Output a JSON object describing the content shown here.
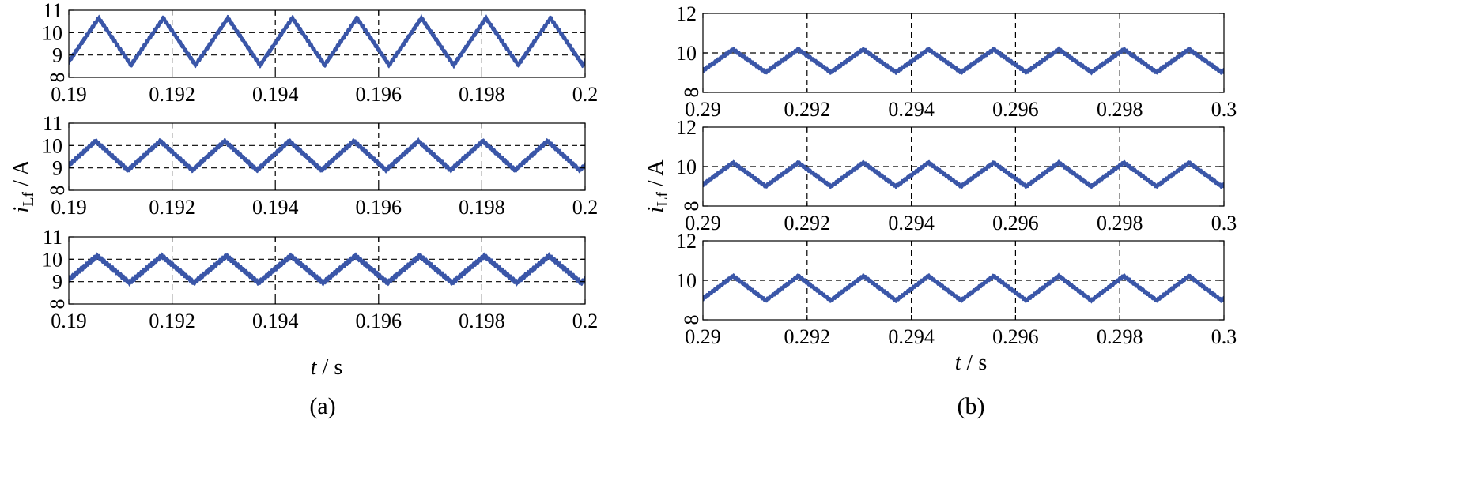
{
  "figure": {
    "ylabel_main": "i",
    "ylabel_sub": "Lf",
    "ylabel_unit": " / A",
    "xlabel_italic": "t",
    "xlabel_unit": " / s"
  },
  "chart_data": [
    {
      "panel": "(a)",
      "type": "line",
      "xlabel": "t / s",
      "ylabel": "iLf / A",
      "subplots": [
        {
          "xlim": [
            0.19,
            0.2
          ],
          "ylim": [
            8,
            11
          ],
          "xticks": [
            "0.19",
            "0.192",
            "0.194",
            "0.196",
            "0.198",
            "0.2"
          ],
          "yticks": [
            "8",
            "9",
            "10",
            "11"
          ],
          "grid": true,
          "series": {
            "color": "#3a56a8",
            "period": 0.00125,
            "first_peak": 0.19058,
            "mean": 9.6,
            "amplitude": 1.05,
            "ripple": 0.25
          }
        },
        {
          "xlim": [
            0.19,
            0.2
          ],
          "ylim": [
            8,
            11
          ],
          "xticks": [
            "0.19",
            "0.192",
            "0.194",
            "0.196",
            "0.198",
            "0.2"
          ],
          "yticks": [
            "8",
            "9",
            "10",
            "11"
          ],
          "grid": true,
          "series": {
            "color": "#3a56a8",
            "period": 0.00125,
            "first_peak": 0.19052,
            "mean": 9.55,
            "amplitude": 0.65,
            "ripple": 0.22
          }
        },
        {
          "xlim": [
            0.19,
            0.2
          ],
          "ylim": [
            8,
            11
          ],
          "xticks": [
            "0.19",
            "0.192",
            "0.194",
            "0.196",
            "0.198",
            "0.2"
          ],
          "yticks": [
            "8",
            "9",
            "10",
            "11"
          ],
          "grid": true,
          "series": {
            "color": "#3a56a8",
            "period": 0.00125,
            "first_peak": 0.19055,
            "mean": 9.55,
            "amplitude": 0.6,
            "ripple": 0.24
          }
        }
      ]
    },
    {
      "panel": "(b)",
      "type": "line",
      "xlabel": "t / s",
      "ylabel": "iLf / A",
      "subplots": [
        {
          "xlim": [
            0.29,
            0.3
          ],
          "ylim": [
            8,
            12
          ],
          "xticks": [
            "0.29",
            "0.292",
            "0.294",
            "0.296",
            "0.298",
            "0.3"
          ],
          "yticks": [
            "8",
            "10",
            "12"
          ],
          "grid": true,
          "series": {
            "color": "#3a56a8",
            "period": 0.00125,
            "first_peak": 0.29058,
            "mean": 9.6,
            "amplitude": 0.58,
            "ripple": 0.22
          }
        },
        {
          "xlim": [
            0.29,
            0.3
          ],
          "ylim": [
            8,
            12
          ],
          "xticks": [
            "0.29",
            "0.292",
            "0.294",
            "0.296",
            "0.298",
            "0.3"
          ],
          "yticks": [
            "8",
            "10",
            "12"
          ],
          "grid": true,
          "series": {
            "color": "#3a56a8",
            "period": 0.00125,
            "first_peak": 0.29058,
            "mean": 9.6,
            "amplitude": 0.6,
            "ripple": 0.22
          }
        },
        {
          "xlim": [
            0.29,
            0.3
          ],
          "ylim": [
            8,
            12
          ],
          "xticks": [
            "0.29",
            "0.292",
            "0.294",
            "0.296",
            "0.298",
            "0.3"
          ],
          "yticks": [
            "8",
            "10",
            "12"
          ],
          "grid": true,
          "series": {
            "color": "#3a56a8",
            "period": 0.00125,
            "first_peak": 0.29058,
            "mean": 9.6,
            "amplitude": 0.62,
            "ripple": 0.22
          }
        }
      ]
    }
  ]
}
